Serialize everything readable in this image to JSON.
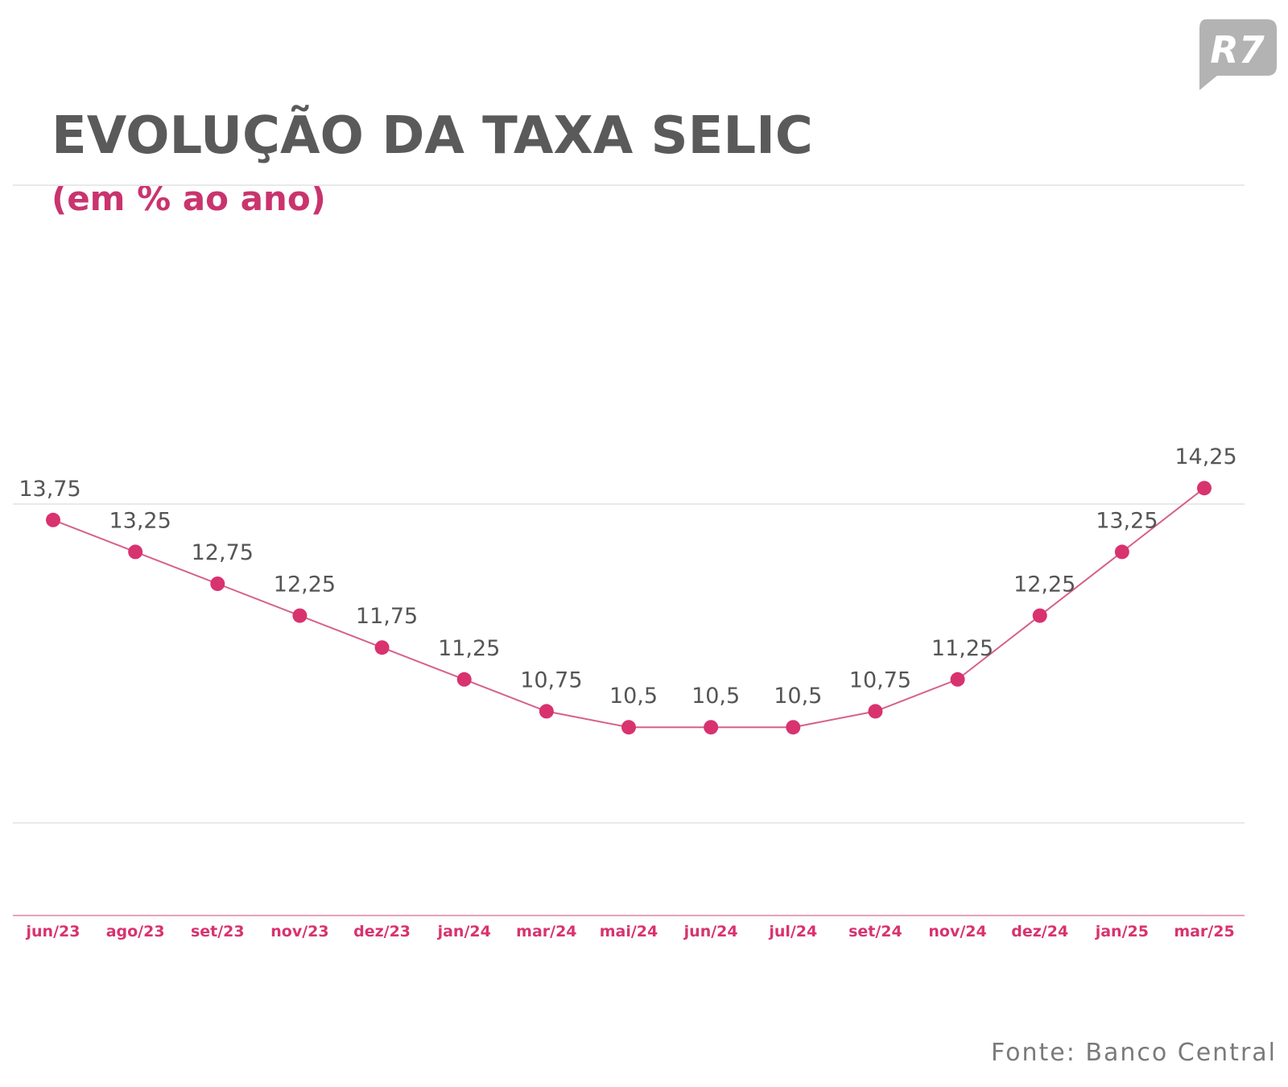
{
  "logo": {
    "text": "R7",
    "color": "#b3b3b3"
  },
  "title": "EVOLUÇÃO DA TAXA SELIC",
  "subtitle": "(em % ao ano)",
  "source": "Fonte: Banco Central",
  "colors": {
    "accent": "#d8336e",
    "line": "#d6608c",
    "value_label": "#555555",
    "axis_label": "#d8336e",
    "gridline": "#e9e9e9",
    "baseline": "#e8a3bd"
  },
  "chart_data": {
    "type": "line",
    "title": "EVOLUÇÃO DA TAXA SELIC",
    "subtitle": "(em % ao ano)",
    "categories": [
      "jun/23",
      "ago/23",
      "set/23",
      "nov/23",
      "dez/23",
      "jan/24",
      "mar/24",
      "mai/24",
      "jun/24",
      "jul/24",
      "set/24",
      "nov/24",
      "dez/24",
      "jan/25",
      "mar/25"
    ],
    "value_labels": [
      "13,75",
      "13,25",
      "12,75",
      "12,25",
      "11,75",
      "11,25",
      "10,75",
      "10,5",
      "10,5",
      "10,5",
      "10,75",
      "11,25",
      "12,25",
      "13,25",
      "14,25"
    ],
    "series": [
      {
        "values": [
          13.75,
          13.25,
          12.75,
          12.25,
          11.75,
          11.25,
          10.75,
          10.5,
          10.5,
          10.5,
          10.75,
          11.25,
          12.25,
          13.25,
          14.25
        ]
      }
    ],
    "xlabel": "",
    "ylabel": "",
    "ylim": [
      9,
      19
    ],
    "grid": true,
    "legend": "none"
  }
}
